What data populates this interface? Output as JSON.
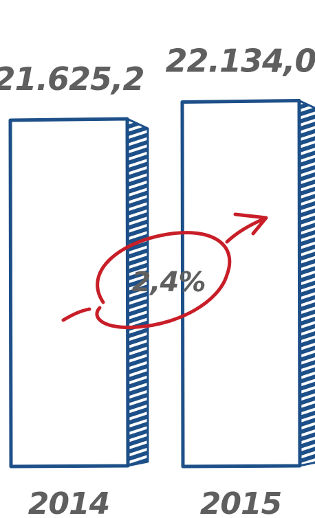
{
  "colors": {
    "bar_outline": "#1d4f88",
    "arrow": "#c81e28",
    "text": "#5f5f5f"
  },
  "chart_data": {
    "type": "bar",
    "categories": [
      "2014",
      "2015"
    ],
    "values": [
      21625.2,
      22134.0
    ],
    "value_labels": [
      "21.625,2",
      "22.134,0"
    ],
    "growth_label": "2,4%",
    "title": "",
    "xlabel": "",
    "ylabel": ""
  }
}
